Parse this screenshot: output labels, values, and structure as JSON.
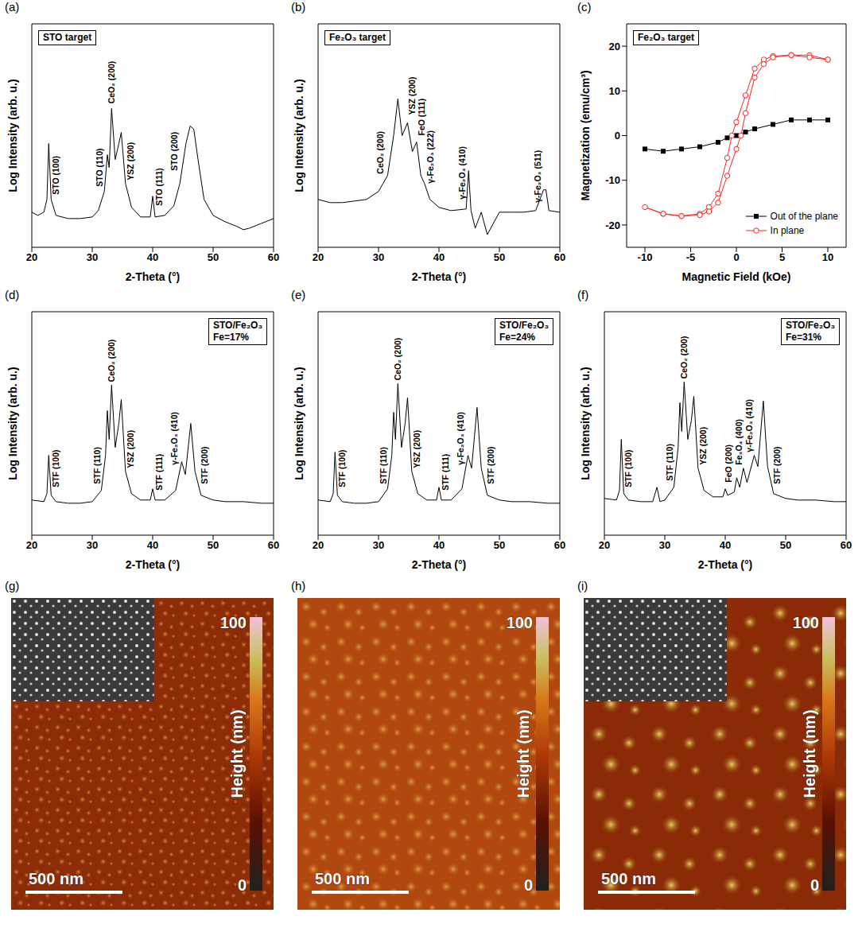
{
  "chart_data": [
    {
      "panel": "(a)",
      "type": "line",
      "box": [
        "STO target"
      ],
      "x_label": "2-Theta (°)",
      "y_label": "Log Intensity (arb. u.)",
      "xlim": [
        20,
        60
      ],
      "xticks": [
        20,
        30,
        40,
        50,
        60
      ],
      "ylim": [
        0,
        14
      ],
      "tick_labels": "x",
      "color": "#000000",
      "x": [
        20,
        21,
        22,
        22.5,
        22.8,
        23.2,
        24,
        26,
        28,
        30,
        31,
        32,
        32.5,
        32.8,
        33.2,
        33.8,
        34.4,
        34.8,
        35.5,
        36.5,
        38,
        39.6,
        40,
        40.4,
        42,
        43.5,
        44.5,
        45.5,
        46.2,
        46.8,
        47.5,
        48.5,
        50,
        52,
        54,
        55,
        56,
        58,
        60
      ],
      "values": [
        2.2,
        2.0,
        2.2,
        3,
        6.5,
        3,
        2.0,
        1.8,
        1.8,
        1.9,
        2.3,
        3.5,
        5.8,
        5,
        8.7,
        5.5,
        6.5,
        7.2,
        4,
        2.5,
        1.9,
        1.9,
        3.2,
        1.9,
        2.0,
        2.6,
        4,
        6.5,
        7.6,
        7.4,
        5.5,
        3,
        2,
        1.6,
        1.3,
        1.1,
        1.2,
        1.5,
        1.8
      ],
      "annotations": [
        {
          "text": "STO (100)",
          "x": 24,
          "y": 3.3
        },
        {
          "text": "STO (110)",
          "x": 31.2,
          "y": 3.8
        },
        {
          "text": "CeO₂ (200)",
          "x": 33.2,
          "y": 9.0
        },
        {
          "text": "YSZ (200)",
          "x": 36.3,
          "y": 4.2
        },
        {
          "text": "STO (111)",
          "x": 41,
          "y": 2.6
        },
        {
          "text": "STO (200)",
          "x": 43.6,
          "y": 4.8
        }
      ]
    },
    {
      "panel": "(b)",
      "type": "line",
      "box": [
        "Fe₂O₃ target"
      ],
      "x_label": "2-Theta (°)",
      "y_label": "Log Intensity (arb. u.)",
      "xlim": [
        20,
        60
      ],
      "xticks": [
        20,
        30,
        40,
        50,
        60
      ],
      "ylim": [
        0,
        14
      ],
      "tick_labels": "x",
      "color": "#000000",
      "x": [
        20,
        22,
        24,
        26,
        28,
        30,
        31.5,
        32.5,
        33.2,
        33.9,
        34.8,
        35.6,
        36.3,
        37,
        37.6,
        38.5,
        40,
        42,
        44.5,
        44.9,
        45.3,
        46,
        47,
        48,
        50,
        52,
        54,
        56,
        57.3,
        57.7,
        58.2,
        60
      ],
      "values": [
        3,
        2.8,
        2.8,
        2.9,
        3,
        3.5,
        4.5,
        7,
        9.3,
        7,
        7.8,
        6,
        6.6,
        4.5,
        4.0,
        3,
        2.5,
        2.3,
        2.4,
        4.8,
        2.3,
        1.2,
        2.2,
        0.8,
        2.2,
        2.2,
        2.2,
        2.3,
        3.6,
        3.6,
        2.3,
        2.2
      ],
      "annotations": [
        {
          "text": "CeO₂ (200)",
          "x": 30.3,
          "y": 4.6
        },
        {
          "text": "YSZ (200)",
          "x": 35.5,
          "y": 8.3
        },
        {
          "text": "FeO (111)",
          "x": 37.1,
          "y": 7
        },
        {
          "text": "γ-Fe₂O₃ (222)",
          "x": 38.6,
          "y": 4
        },
        {
          "text": "γ-Fe₂O₃ (410)",
          "x": 43.8,
          "y": 3
        },
        {
          "text": "γ-Fe₂O₃ (511)",
          "x": 56.3,
          "y": 2.8
        }
      ]
    },
    {
      "panel": "(c)",
      "type": "line",
      "box": [
        "Fe₂O₃ target"
      ],
      "x_label": "Magnetic Field (kOe)",
      "y_label": "Magnetization (emu/cm³)",
      "xlim": [
        -12,
        12
      ],
      "xticks": [
        -10,
        -5,
        0,
        5,
        10
      ],
      "ylim": [
        -25,
        25
      ],
      "yticks": [
        -20,
        -10,
        0,
        10,
        20
      ],
      "legend": "lower right",
      "series": [
        {
          "name": "Out of the plane",
          "color": "#000000",
          "marker": "square",
          "x": [
            -10,
            -8,
            -6,
            -4,
            -2,
            -1,
            0,
            1,
            2,
            4,
            6,
            8,
            10
          ],
          "values": [
            -3,
            -3.5,
            -3,
            -2.5,
            -1.5,
            -0.5,
            0,
            0.8,
            1.5,
            2.5,
            3.5,
            3.5,
            3.5
          ]
        },
        {
          "name": "In plane",
          "color": "#ff2020",
          "marker": "open circle",
          "x": [
            10,
            8,
            6,
            4,
            3,
            2,
            1,
            0,
            -0.5,
            -1,
            -2,
            -3,
            -4,
            -6,
            -8,
            -10,
            -8,
            -6,
            -4,
            -3,
            -2,
            -1,
            0,
            0.5,
            1,
            2,
            3,
            4,
            6,
            8,
            10
          ],
          "values": [
            17,
            18,
            18,
            17.8,
            17,
            15,
            9,
            3,
            0,
            -5,
            -13,
            -16,
            -17.5,
            -18,
            -17.5,
            -16,
            -17.5,
            -18,
            -17.8,
            -17,
            -15,
            -9,
            -3,
            0,
            5,
            13,
            16,
            17.5,
            18,
            17.5,
            17
          ]
        }
      ]
    },
    {
      "panel": "(d)",
      "type": "line",
      "box": [
        "STO/Fe₂O₃",
        "Fe=17%"
      ],
      "x_label": "2-Theta (°)",
      "y_label": "Log Intensity (arb. u.)",
      "xlim": [
        20,
        60
      ],
      "xticks": [
        20,
        30,
        40,
        50,
        60
      ],
      "ylim": [
        0,
        14
      ],
      "tick_labels": "x",
      "color": "#000000",
      "x": [
        20,
        22,
        22.5,
        22.8,
        23.2,
        24,
        26,
        28,
        30,
        31.5,
        32.2,
        32.5,
        32.8,
        33.2,
        33.8,
        34.4,
        34.8,
        35.5,
        36.5,
        38,
        39.6,
        40,
        40.4,
        42,
        43.8,
        44.8,
        45.4,
        46.3,
        47,
        48,
        50,
        52,
        55,
        58,
        60
      ],
      "values": [
        2.2,
        2.1,
        2.6,
        5,
        2.5,
        2.1,
        2,
        2,
        2.1,
        2.8,
        5,
        7.8,
        6,
        9.4,
        5.5,
        7,
        8.5,
        4,
        2.6,
        2.2,
        2.2,
        2.9,
        2.2,
        2.2,
        2.8,
        4.6,
        3.8,
        7,
        4,
        2.5,
        2.2,
        2.1,
        2.1,
        2,
        2
      ],
      "annotations": [
        {
          "text": "STF (100)",
          "x": 24,
          "y": 3
        },
        {
          "text": "STF (110)",
          "x": 30.8,
          "y": 3.2
        },
        {
          "text": "CeO₂ (200)",
          "x": 33.2,
          "y": 9.6
        },
        {
          "text": "YSZ (200)",
          "x": 36.3,
          "y": 4.2
        },
        {
          "text": "STF (111)",
          "x": 41,
          "y": 2.8
        },
        {
          "text": "γ-Fe₂O₃ (410)",
          "x": 43.5,
          "y": 4.4
        },
        {
          "text": "STF (200)",
          "x": 48.6,
          "y": 3.2
        }
      ]
    },
    {
      "panel": "(e)",
      "type": "line",
      "box": [
        "STO/Fe₂O₃",
        "Fe=24%"
      ],
      "x_label": "2-Theta (°)",
      "y_label": "Log Intensity (arb. u.)",
      "xlim": [
        20,
        60
      ],
      "xticks": [
        20,
        30,
        40,
        50,
        60
      ],
      "ylim": [
        0,
        14
      ],
      "tick_labels": "x",
      "color": "#000000",
      "x": [
        20,
        22,
        22.5,
        22.8,
        23.2,
        24,
        26,
        28,
        30,
        31.5,
        32.2,
        32.5,
        32.8,
        33.2,
        33.8,
        34.4,
        34.8,
        35.5,
        36.5,
        38,
        39.6,
        40,
        40.4,
        42,
        43.8,
        44.8,
        45.4,
        46.3,
        47,
        48,
        50,
        52,
        55,
        58,
        60
      ],
      "values": [
        2.2,
        2.1,
        2.6,
        5.2,
        2.5,
        2.1,
        2,
        2,
        2.1,
        2.9,
        5,
        7.7,
        6,
        9.5,
        5.5,
        7,
        8.6,
        4,
        2.6,
        2.2,
        2.2,
        3,
        2.2,
        2.2,
        2.9,
        5,
        4.2,
        8,
        4.2,
        2.5,
        2.2,
        2.1,
        2.1,
        2,
        2
      ],
      "annotations": [
        {
          "text": "STF (100)",
          "x": 24,
          "y": 3
        },
        {
          "text": "STF (110)",
          "x": 30.8,
          "y": 3.2
        },
        {
          "text": "CeO₂ (200)",
          "x": 33.2,
          "y": 9.7
        },
        {
          "text": "YSZ (200)",
          "x": 36.3,
          "y": 4.2
        },
        {
          "text": "STF (111)",
          "x": 41,
          "y": 2.8
        },
        {
          "text": "γ-Fe₂O₃ (410)",
          "x": 43.5,
          "y": 4.4
        },
        {
          "text": "STF (200)",
          "x": 48.6,
          "y": 3.2
        }
      ]
    },
    {
      "panel": "(f)",
      "type": "line",
      "box": [
        "STO/Fe₂O₃",
        "Fe=31%"
      ],
      "x_label": "2-Theta (°)",
      "y_label": "Log Intensity (arb. u.)",
      "xlim": [
        20,
        60
      ],
      "xticks": [
        20,
        30,
        40,
        50,
        60
      ],
      "ylim": [
        0,
        14
      ],
      "tick_labels": "x",
      "color": "#000000",
      "x": [
        20,
        22,
        22.5,
        22.8,
        23.2,
        24,
        26,
        28,
        28.7,
        29.2,
        30,
        31.5,
        32.2,
        32.5,
        32.8,
        33.2,
        33.8,
        34.4,
        34.8,
        35.5,
        36.5,
        38,
        39.6,
        40,
        40.4,
        41.5,
        41.9,
        42.4,
        43,
        43.6,
        44.8,
        45.4,
        46.3,
        47,
        48,
        50,
        52,
        55,
        58,
        60
      ],
      "values": [
        2.3,
        2.2,
        2.8,
        6,
        2.6,
        2.2,
        2.1,
        2.1,
        3,
        2.1,
        2.2,
        3,
        5.5,
        8.3,
        6.5,
        9.6,
        6,
        7.2,
        8.7,
        4.2,
        2.8,
        2.4,
        2.4,
        2.9,
        2.5,
        2.7,
        3.6,
        3,
        4.2,
        3.3,
        5,
        4.3,
        8.4,
        4.3,
        2.6,
        2.3,
        2.2,
        2.2,
        2.1,
        2.1
      ],
      "annotations": [
        {
          "text": "STF (100)",
          "x": 24,
          "y": 3
        },
        {
          "text": "STF (110)",
          "x": 30.8,
          "y": 3.4
        },
        {
          "text": "CeO₂ (200)",
          "x": 33.2,
          "y": 9.8
        },
        {
          "text": "YSZ (200)",
          "x": 36.3,
          "y": 4.4
        },
        {
          "text": "FeO (200)",
          "x": 40.5,
          "y": 3.3
        },
        {
          "text": "Fe₃O₄ (400)",
          "x": 42.2,
          "y": 4.4
        },
        {
          "text": "γ-Fe₂O₃ (410)",
          "x": 43.9,
          "y": 5.2
        },
        {
          "text": "STF (200)",
          "x": 48.6,
          "y": 3.2
        }
      ]
    }
  ],
  "images": [
    {
      "panel": "(g)",
      "type": "image",
      "inset": true,
      "scale_bar": "500 nm",
      "colorbar": {
        "label": "Height (nm)",
        "range": [
          0,
          100
        ],
        "ticks": [
          0,
          100
        ]
      }
    },
    {
      "panel": "(h)",
      "type": "image",
      "inset": false,
      "scale_bar": "500 nm",
      "colorbar": {
        "label": "Height (nm)",
        "range": [
          0,
          100
        ],
        "ticks": [
          0,
          100
        ]
      }
    },
    {
      "panel": "(i)",
      "type": "image",
      "inset": true,
      "scale_bar": "500 nm",
      "colorbar": {
        "label": "Height (nm)",
        "range": [
          0,
          100
        ],
        "ticks": [
          0,
          100
        ]
      }
    }
  ]
}
